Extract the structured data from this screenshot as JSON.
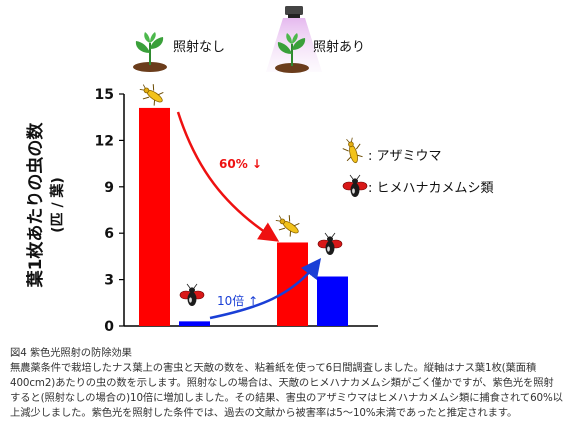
{
  "chart_data": {
    "type": "bar",
    "ylabel": "葉1枚あたりの虫の数",
    "ylabel_unit": "(匹 / 葉)",
    "ylim": [
      0,
      15
    ],
    "yticks": [
      0,
      3,
      6,
      9,
      12,
      15
    ],
    "categories": [
      "照射なし",
      "照射あり"
    ],
    "series": [
      {
        "name": "アザミウマ",
        "color": "#ff0000",
        "values": [
          14.1,
          5.4
        ]
      },
      {
        "name": "ヒメハナカメムシ類",
        "color": "#0000ff",
        "values": [
          0.3,
          3.2
        ]
      }
    ],
    "legend": [
      {
        "label": ": アザミウマ",
        "icon": "thrips-icon"
      },
      {
        "label": ": ヒメハナカメムシ類",
        "icon": "pirate-bug-icon"
      }
    ],
    "annotations": {
      "decrease": "60% ↓",
      "increase": "10倍 ↑"
    },
    "colors": {
      "decrease_arrow": "#ee1111",
      "increase_arrow": "#1a3fd6",
      "lamp_light": "#e9c8f0"
    }
  },
  "caption": {
    "title": "図4 紫色光照射の防除効果",
    "lines": [
      "無農薬条件で栽培したナス葉上の害虫と天敵の数を、粘着紙を使って6日間調査しました。縦軸はナス葉1枚(葉面積",
      "400cm2)あたりの虫の数を示します。照射なしの場合は、天敵のヒメハナカメムシ類がごく僅かですが、紫色光を照射",
      "すると(照射なしの場合の)10倍に増加しました。その結果、害虫のアザミウマはヒメハナカメムシ類に捕食されて60%以",
      "上減少しました。紫色光を照射した条件では、過去の文献から被害率は5〜10%未満であったと推定されます。"
    ]
  }
}
